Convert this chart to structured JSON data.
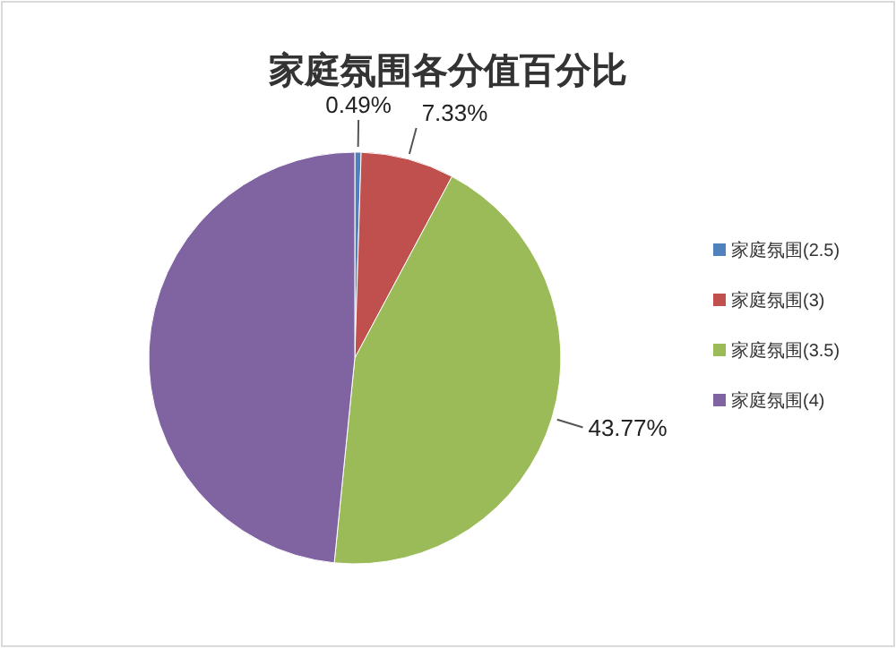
{
  "chart_data": {
    "type": "pie",
    "title": "家庭氛围各分值百分比",
    "categories": [
      "家庭氛围(2.5)",
      "家庭氛围(3)",
      "家庭氛围(3.5)",
      "家庭氛围(4)"
    ],
    "values": [
      0.49,
      7.33,
      43.77,
      48.41
    ],
    "colors": [
      "#4f81bd",
      "#c0504d",
      "#9bbb59",
      "#8064a2"
    ],
    "value_labels": [
      "0.49%",
      "7.33%",
      "43.77%",
      null
    ],
    "legend": "right"
  }
}
